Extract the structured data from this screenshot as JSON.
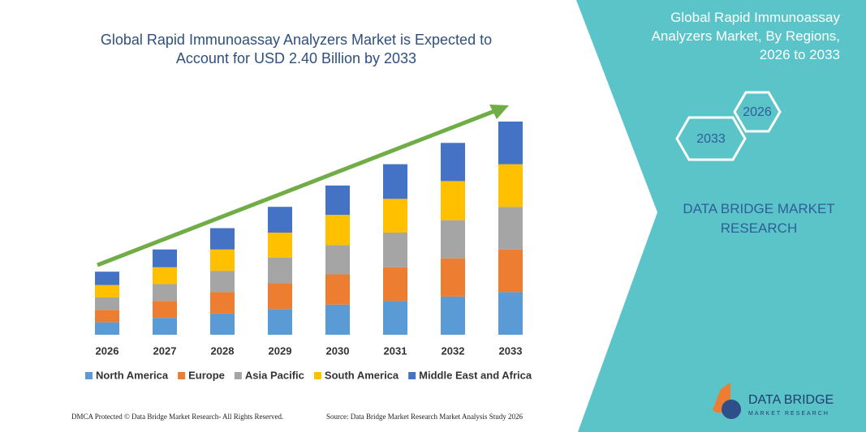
{
  "header": {
    "title": "Global Rapid Immunoassay Analyzers Market is Expected to Account for USD 2.40 Billion by 2033"
  },
  "chart_data": {
    "type": "bar",
    "stacked": true,
    "categories": [
      "2026",
      "2027",
      "2028",
      "2029",
      "2030",
      "2031",
      "2032",
      "2033"
    ],
    "series": [
      {
        "name": "North America",
        "color": "#5b9bd5",
        "values": [
          0.14,
          0.19,
          0.24,
          0.29,
          0.34,
          0.38,
          0.43,
          0.48
        ]
      },
      {
        "name": "Europe",
        "color": "#ed7d31",
        "values": [
          0.14,
          0.19,
          0.24,
          0.29,
          0.34,
          0.38,
          0.43,
          0.48
        ]
      },
      {
        "name": "Asia Pacific",
        "color": "#a5a5a5",
        "values": [
          0.14,
          0.19,
          0.24,
          0.29,
          0.33,
          0.39,
          0.43,
          0.48
        ]
      },
      {
        "name": "South America",
        "color": "#ffc000",
        "values": [
          0.14,
          0.19,
          0.24,
          0.28,
          0.34,
          0.38,
          0.44,
          0.48
        ]
      },
      {
        "name": "Middle East and Africa",
        "color": "#4472c4",
        "values": [
          0.15,
          0.2,
          0.24,
          0.29,
          0.33,
          0.39,
          0.43,
          0.48
        ]
      }
    ]
  },
  "side_panel": {
    "title": "Global Rapid Immunoassay Analyzers Market, By Regions, 2026 to 2033",
    "hex_labels": [
      "2026",
      "2033"
    ],
    "brand": "DATA BRIDGE MARKET RESEARCH"
  },
  "footer": {
    "left": "DMCA Protected © Data Bridge Market Research- All Rights Reserved.",
    "right": "Source: Data Bridge Market Research Market Analysis Study 2026"
  },
  "logo": {
    "name": "DATA BRIDGE",
    "tagline": "MARKET RESEARCH"
  }
}
